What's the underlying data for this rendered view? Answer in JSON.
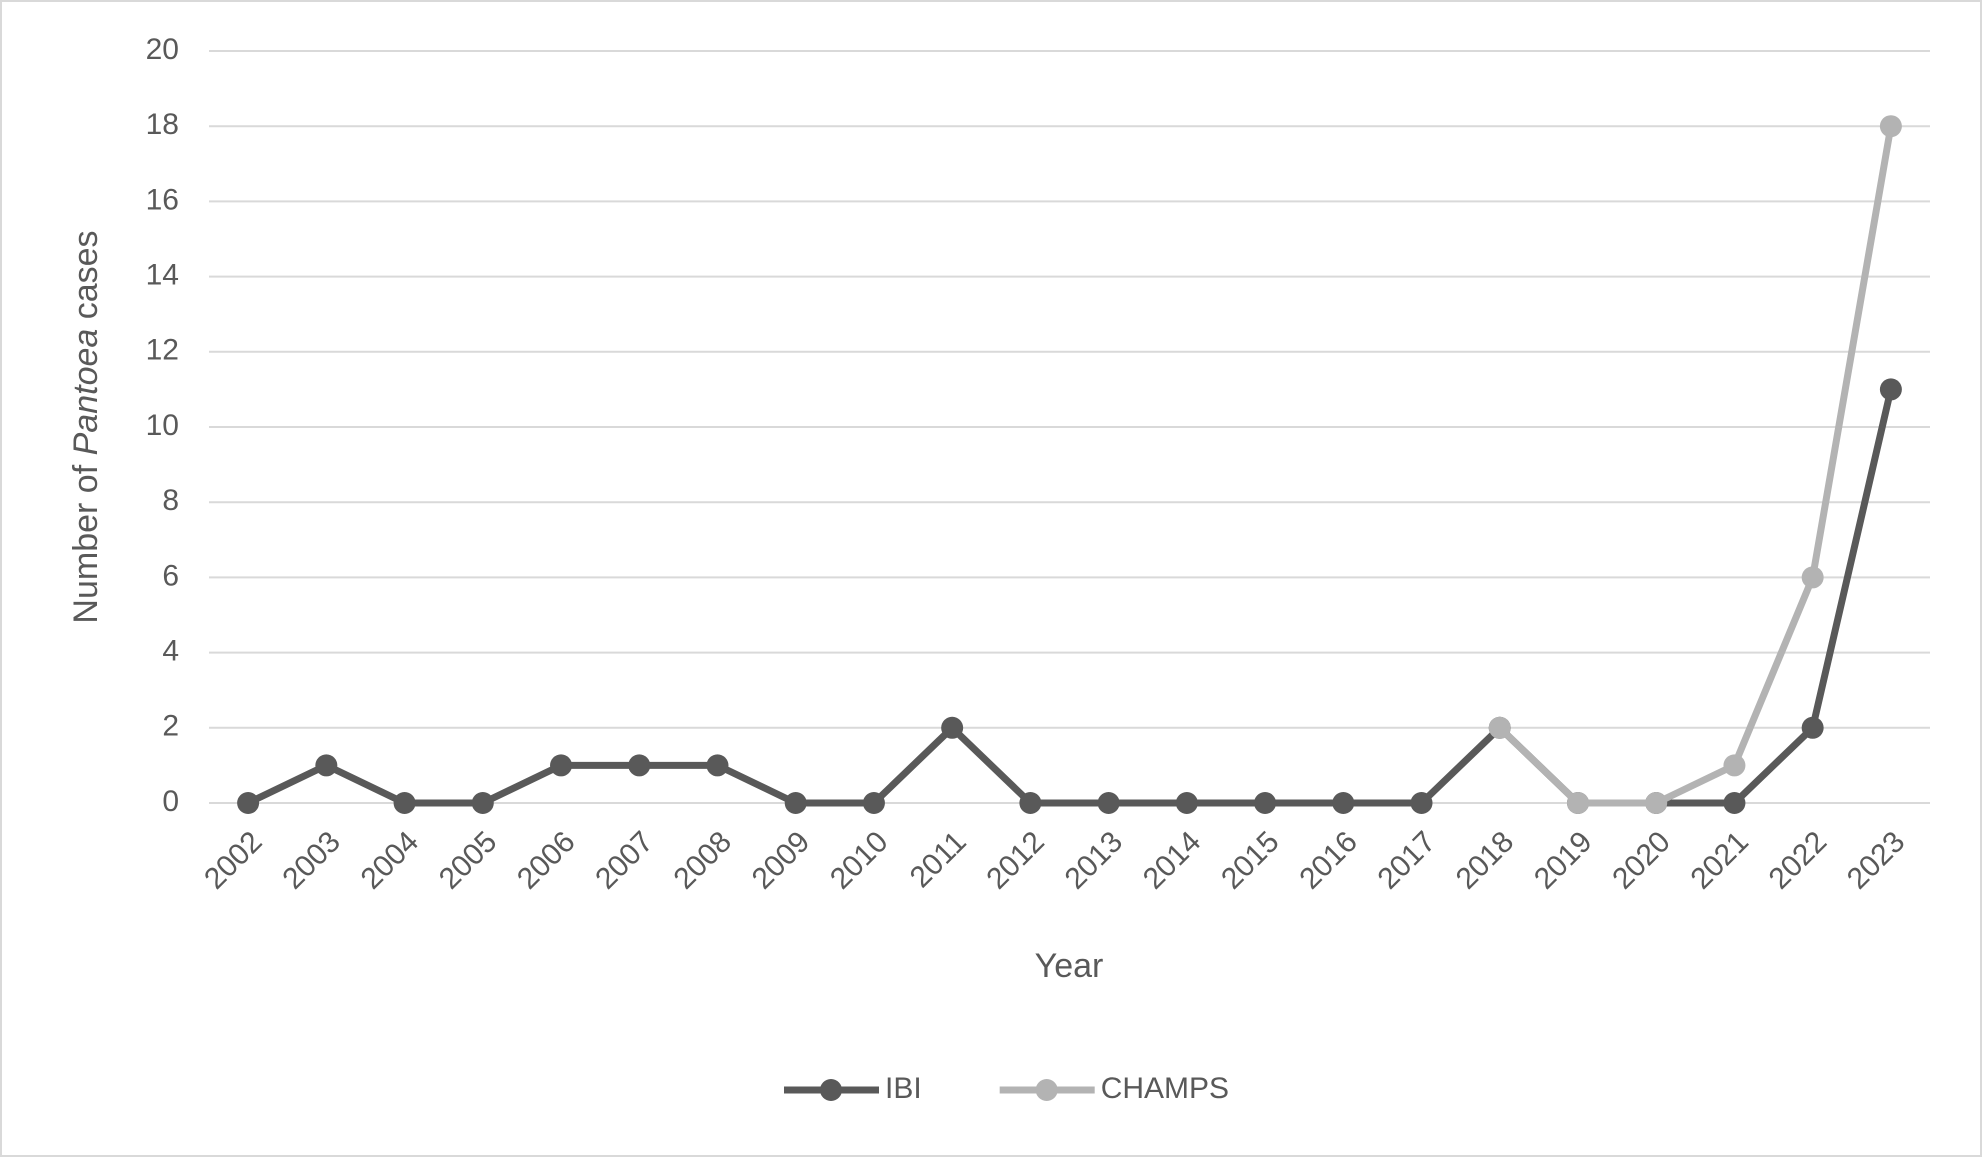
{
  "chart_data": {
    "type": "line",
    "x_label": "Year",
    "y_label_parts": [
      "Number of ",
      "Pantoea",
      " cases"
    ],
    "categories": [
      "2002",
      "2003",
      "2004",
      "2005",
      "2006",
      "2007",
      "2008",
      "2009",
      "2010",
      "2011",
      "2012",
      "2013",
      "2014",
      "2015",
      "2016",
      "2017",
      "2018",
      "2019",
      "2020",
      "2021",
      "2022",
      "2023"
    ],
    "series": [
      {
        "name": "IBI",
        "color": "#595959",
        "values": [
          0,
          1,
          0,
          0,
          1,
          1,
          1,
          0,
          0,
          2,
          0,
          0,
          0,
          0,
          0,
          0,
          2,
          0,
          0,
          0,
          2,
          11
        ]
      },
      {
        "name": "CHAMPS",
        "color": "#b3b3b3",
        "values": [
          null,
          null,
          null,
          null,
          null,
          null,
          null,
          null,
          null,
          null,
          null,
          null,
          null,
          null,
          null,
          null,
          2,
          0,
          0,
          1,
          6,
          18
        ]
      }
    ],
    "ylim": [
      0,
      20
    ],
    "yticks": [
      0,
      2,
      4,
      6,
      8,
      10,
      12,
      14,
      16,
      18,
      20
    ],
    "grid": true,
    "legend": "bottom"
  }
}
